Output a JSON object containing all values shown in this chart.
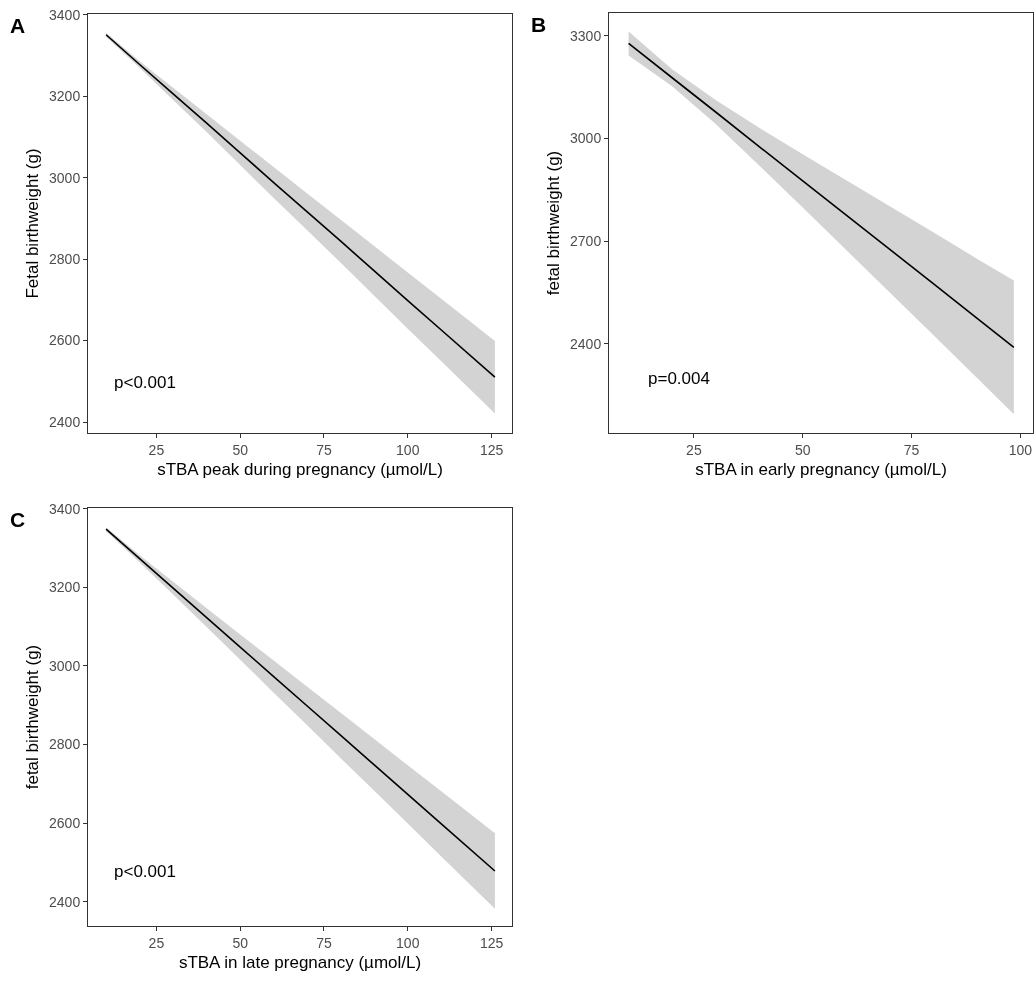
{
  "chart_data": [
    {
      "type": "line",
      "xlabel": "sTBA peak during pregnancy (µmol/L)",
      "ylabel": "Fetal birthweight (g)",
      "annotations": [
        "A",
        "p<0.001"
      ],
      "xlim": [
        4.6,
        131.1
      ],
      "ylim": [
        2373,
        3402
      ],
      "xticks": [
        25,
        50,
        75,
        100,
        125
      ],
      "yticks": [
        2400,
        2600,
        2800,
        3000,
        3200,
        3400
      ],
      "series": [
        {
          "color": "#000000",
          "x": [
            10,
            20,
            30,
            40,
            50,
            60,
            70,
            80,
            90,
            100,
            110,
            126
          ],
          "values": [
            3351,
            3278,
            3206,
            3134,
            3061,
            2988,
            2916,
            2844,
            2771,
            2698,
            2626,
            2510
          ],
          "lower": [
            3346,
            3270,
            3191,
            3112,
            3031,
            2950,
            2871,
            2791,
            2710,
            2629,
            2549,
            2421
          ],
          "upper": [
            3356,
            3286,
            3221,
            3156,
            3091,
            3026,
            2961,
            2897,
            2832,
            2767,
            2703,
            2599
          ]
        }
      ]
    },
    {
      "type": "line",
      "xlabel": "sTBA in early pregnancy (µmol/L)",
      "ylabel": "fetal birthweight (g)",
      "annotations": [
        "B",
        "p=0.004"
      ],
      "xlim": [
        5.5,
        102.9
      ],
      "ylim": [
        2140,
        3366
      ],
      "xticks": [
        25,
        50,
        75,
        100
      ],
      "yticks": [
        2400,
        2700,
        3000,
        3300
      ],
      "series": [
        {
          "color": "#000000",
          "x": [
            10,
            20,
            30,
            40,
            50,
            60,
            70,
            80,
            90,
            98.5
          ],
          "values": [
            3277,
            3177,
            3077,
            2976,
            2876,
            2776,
            2676,
            2576,
            2475,
            2390
          ],
          "lower": [
            3242,
            3152,
            3042,
            2921,
            2798,
            2674,
            2550,
            2426,
            2301,
            2195
          ],
          "upper": [
            3312,
            3202,
            3112,
            3031,
            2954,
            2878,
            2802,
            2726,
            2649,
            2585
          ]
        }
      ]
    },
    {
      "type": "line",
      "xlabel": "sTBA in late pregnancy (µmol/L)",
      "ylabel": "fetal birthweight (g)",
      "annotations": [
        "C",
        "p<0.001"
      ],
      "xlim": [
        4.6,
        131.1
      ],
      "ylim": [
        2338,
        3402
      ],
      "xticks": [
        25,
        50,
        75,
        100,
        125
      ],
      "yticks": [
        2400,
        2600,
        2800,
        3000,
        3200,
        3400
      ],
      "series": [
        {
          "color": "#000000",
          "x": [
            10,
            20,
            30,
            40,
            50,
            60,
            70,
            80,
            90,
            100,
            110,
            126
          ],
          "values": [
            3348,
            3273,
            3198,
            3123,
            3048,
            2973,
            2898,
            2823,
            2748,
            2673,
            2598,
            2478
          ],
          "lower": [
            3343,
            3264,
            3182,
            3099,
            3016,
            2932,
            2849,
            2765,
            2682,
            2599,
            2515,
            2382
          ],
          "upper": [
            3353,
            3282,
            3214,
            3147,
            3080,
            3014,
            2947,
            2881,
            2814,
            2747,
            2681,
            2574
          ]
        }
      ]
    }
  ]
}
